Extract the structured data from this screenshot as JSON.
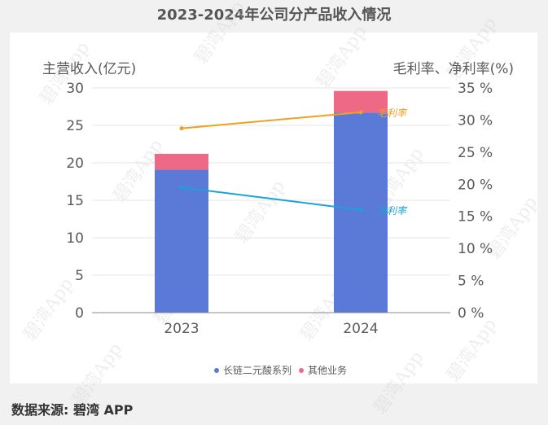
{
  "title": "2023-2024年公司分产品收入情况",
  "source": "数据来源: 碧湾 APP",
  "watermark": "碧湾App",
  "colors": {
    "series_main": "#5b79d6",
    "series_other": "#ee6985",
    "gross_margin": "#f0a020",
    "net_margin": "#1aa3d8",
    "axis_text": "#595959",
    "grid": "#e6e6e6"
  },
  "chart_data": {
    "type": "bar",
    "stacked": true,
    "categories": [
      "2023",
      "2024"
    ],
    "ylabel": "主营收入(亿元)",
    "y2label": "毛利率、净利率(%)",
    "ylim": [
      0,
      30
    ],
    "yticks": [
      "0",
      "5",
      "10",
      "15",
      "20",
      "25",
      "30"
    ],
    "y2lim": [
      0,
      35
    ],
    "y2ticks": [
      "0 %",
      "5 %",
      "10 %",
      "15 %",
      "20 %",
      "25 %",
      "30 %",
      "35 %"
    ],
    "series": [
      {
        "name": "长链二元酸系列",
        "values": [
          19.1,
          26.7
        ]
      },
      {
        "name": "其他业务",
        "values": [
          2.1,
          2.9
        ]
      }
    ],
    "lines": [
      {
        "name": "毛利率",
        "values": [
          28.7,
          31.2
        ],
        "label": "毛利率"
      },
      {
        "name": "净利率",
        "values": [
          19.5,
          16.0
        ],
        "label": "净利率"
      }
    ],
    "legend_position": "bottom"
  }
}
